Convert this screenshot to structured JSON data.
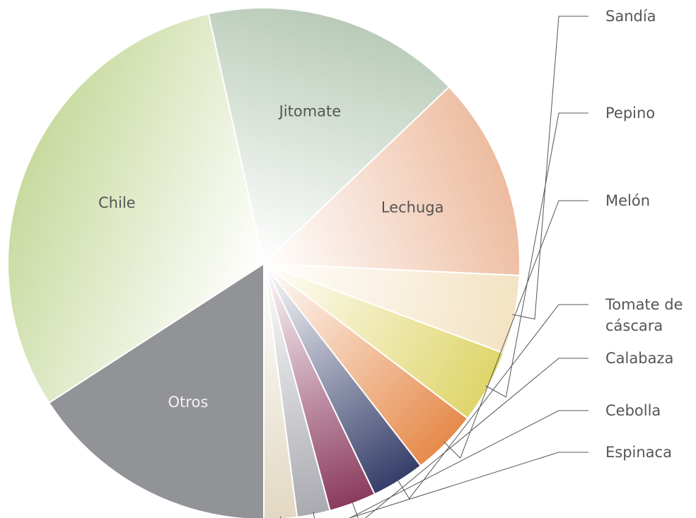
{
  "chart_data": {
    "type": "pie",
    "title": "",
    "slices": [
      {
        "label": "Otros",
        "value": 16.0,
        "inside": true,
        "color": "#929397"
      },
      {
        "label": "Chile",
        "value": 31.0,
        "inside": true,
        "color": "#c8da9f"
      },
      {
        "label": "Jitomate",
        "value": 16.5,
        "inside": true,
        "color": "#b9cbb8"
      },
      {
        "label": "Lechuga",
        "value": 13.0,
        "inside": true,
        "color": "#edbca0"
      },
      {
        "label": "Sandía",
        "value": 5.0,
        "inside": false,
        "color": "#f4e3c3"
      },
      {
        "label": "Pepino",
        "value": 4.7,
        "inside": false,
        "color": "#dfd56a"
      },
      {
        "label": "Melón",
        "value": 4.2,
        "inside": false,
        "color": "#e68a4a"
      },
      {
        "label": "Tomate de cáscara",
        "value": 3.4,
        "inside": false,
        "color": "#353e69"
      },
      {
        "label": "Calabaza",
        "value": 3.0,
        "inside": false,
        "color": "#8b3a5e"
      },
      {
        "label": "Cebolla",
        "value": 2.1,
        "inside": false,
        "color": "#a9aab0"
      },
      {
        "label": "Espinaca",
        "value": 2.1,
        "inside": false,
        "color": "#e2d8c2"
      }
    ]
  }
}
